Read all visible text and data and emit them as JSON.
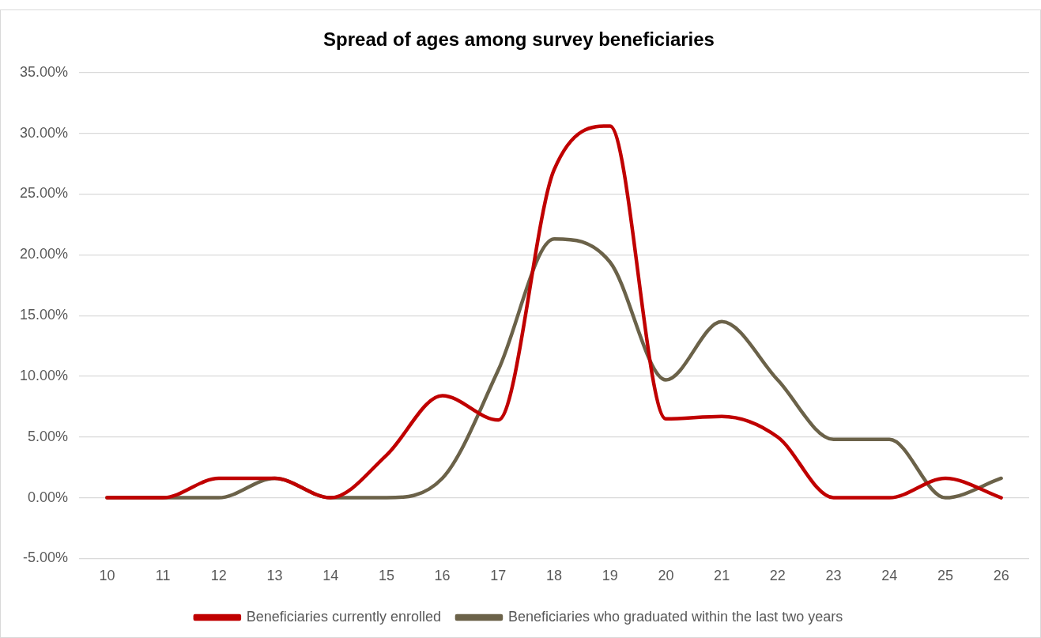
{
  "chart_data": {
    "type": "line",
    "title": "Spread of ages among survey beneficiaries",
    "categories": [
      "10",
      "11",
      "12",
      "13",
      "14",
      "15",
      "16",
      "17",
      "18",
      "19",
      "20",
      "21",
      "22",
      "23",
      "24",
      "25",
      "26"
    ],
    "series": [
      {
        "name": "Beneficiaries currently enrolled",
        "color": "#c00000",
        "values": [
          0,
          0,
          1.6,
          1.6,
          0,
          3.5,
          8.4,
          6.4,
          27,
          30.6,
          6.5,
          6.7,
          5,
          0,
          0,
          1.6,
          0
        ]
      },
      {
        "name": "Beneficiaries who graduated within the last two years",
        "color": "#6b6249",
        "values": [
          0,
          0,
          0,
          1.6,
          0,
          0,
          1.6,
          10.5,
          21.3,
          19.4,
          9.7,
          14.5,
          9.7,
          4.8,
          4.8,
          0,
          1.6
        ]
      }
    ],
    "ylim": [
      -5,
      35
    ],
    "yticks": [
      {
        "value": -5,
        "label": "-5.00%"
      },
      {
        "value": 0,
        "label": "0.00%"
      },
      {
        "value": 5,
        "label": "5.00%"
      },
      {
        "value": 10,
        "label": "10.00%"
      },
      {
        "value": 15,
        "label": "15.00%"
      },
      {
        "value": 20,
        "label": "20.00%"
      },
      {
        "value": 25,
        "label": "25.00%"
      },
      {
        "value": 30,
        "label": "30.00%"
      },
      {
        "value": 35,
        "label": "35.00%"
      }
    ],
    "grid": "y",
    "legend": "bottom",
    "marker": "none",
    "line_style": "solid"
  }
}
